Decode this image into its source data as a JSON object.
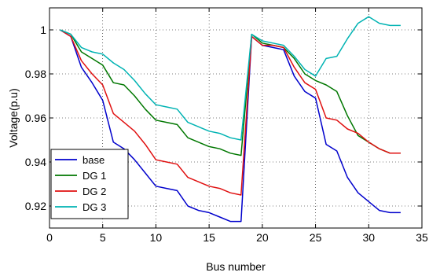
{
  "chart_data": {
    "type": "line",
    "title": "",
    "xlabel": "Bus number",
    "ylabel": "Voltage(p.u)",
    "xlim": [
      0,
      35
    ],
    "ylim": [
      0.91,
      1.01
    ],
    "xticks": [
      0,
      5,
      10,
      15,
      20,
      25,
      30,
      35
    ],
    "yticks": [
      0.92,
      0.94,
      0.96,
      0.98,
      1
    ],
    "ytick_labels": [
      "0.92",
      "0.94",
      "0.96",
      "0.98",
      "1"
    ],
    "grid": true,
    "legend_position": "bottom-left",
    "x": [
      1,
      2,
      3,
      4,
      5,
      6,
      7,
      8,
      9,
      10,
      11,
      12,
      13,
      14,
      15,
      16,
      17,
      18,
      19,
      20,
      21,
      22,
      23,
      24,
      25,
      26,
      27,
      28,
      29,
      30,
      31,
      32,
      33
    ],
    "series": [
      {
        "name": "base",
        "color": "#0000cc",
        "values": [
          1.0,
          0.997,
          0.983,
          0.976,
          0.968,
          0.949,
          0.946,
          0.941,
          0.935,
          0.929,
          0.928,
          0.927,
          0.92,
          0.918,
          0.917,
          0.915,
          0.913,
          0.913,
          0.997,
          0.993,
          0.992,
          0.991,
          0.979,
          0.972,
          0.969,
          0.948,
          0.945,
          0.933,
          0.926,
          0.922,
          0.918,
          0.917,
          0.917
        ]
      },
      {
        "name": "DG 1",
        "color": "#007700",
        "values": [
          1.0,
          0.998,
          0.99,
          0.987,
          0.984,
          0.976,
          0.975,
          0.97,
          0.964,
          0.959,
          0.958,
          0.957,
          0.951,
          0.949,
          0.947,
          0.946,
          0.944,
          0.943,
          0.998,
          0.994,
          0.993,
          0.992,
          0.987,
          0.98,
          0.977,
          0.975,
          0.972,
          0.961,
          0.952,
          0.949,
          0.946,
          0.944,
          0.944
        ]
      },
      {
        "name": "DG 2",
        "color": "#e01010",
        "values": [
          1.0,
          0.997,
          0.986,
          0.98,
          0.975,
          0.962,
          0.958,
          0.954,
          0.948,
          0.941,
          0.94,
          0.939,
          0.933,
          0.931,
          0.929,
          0.928,
          0.926,
          0.925,
          0.997,
          0.993,
          0.993,
          0.992,
          0.983,
          0.976,
          0.973,
          0.96,
          0.959,
          0.955,
          0.953,
          0.949,
          0.946,
          0.944,
          0.944
        ]
      },
      {
        "name": "DG 3",
        "color": "#00b3b3",
        "values": [
          1.0,
          0.998,
          0.992,
          0.99,
          0.989,
          0.985,
          0.982,
          0.977,
          0.971,
          0.966,
          0.965,
          0.964,
          0.958,
          0.956,
          0.954,
          0.953,
          0.951,
          0.95,
          0.998,
          0.995,
          0.994,
          0.993,
          0.988,
          0.982,
          0.979,
          0.987,
          0.988,
          0.996,
          1.003,
          1.006,
          1.003,
          1.002,
          1.002
        ]
      }
    ]
  }
}
